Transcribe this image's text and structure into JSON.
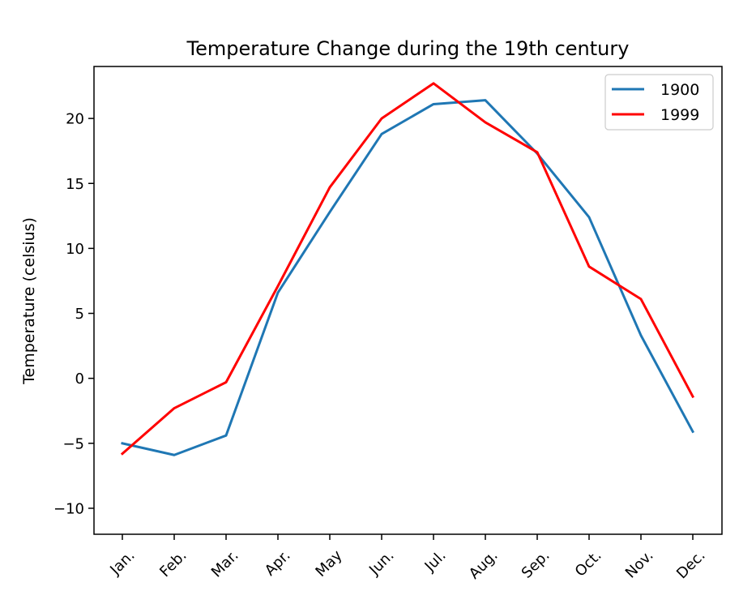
{
  "chart_data": {
    "type": "line",
    "title": "Temperature Change during the 19th century",
    "xlabel": "",
    "ylabel": "Temperature (celsius)",
    "categories": [
      "Jan.",
      "Feb.",
      "Mar.",
      "Apr.",
      "May",
      "Jun.",
      "Jul.",
      "Aug.",
      "Sep.",
      "Oct.",
      "Nov.",
      "Dec."
    ],
    "ylim": [
      -12,
      24
    ],
    "yticks": [
      -10,
      -5,
      0,
      5,
      10,
      15,
      20
    ],
    "ytick_labels": [
      "−10",
      "−5",
      "0",
      "5",
      "10",
      "15",
      "20"
    ],
    "grid": false,
    "legend_position": "top-right",
    "series": [
      {
        "name": "1900",
        "color": "#1f77b4",
        "values": [
          -5.0,
          -5.9,
          -4.4,
          6.6,
          12.8,
          18.8,
          21.1,
          21.4,
          17.3,
          12.4,
          3.3,
          -4.1
        ]
      },
      {
        "name": "1999",
        "color": "#ff0000",
        "values": [
          -5.8,
          -2.3,
          -0.3,
          7.1,
          14.7,
          20.0,
          22.7,
          19.7,
          17.4,
          8.6,
          6.1,
          -1.4
        ]
      }
    ]
  }
}
